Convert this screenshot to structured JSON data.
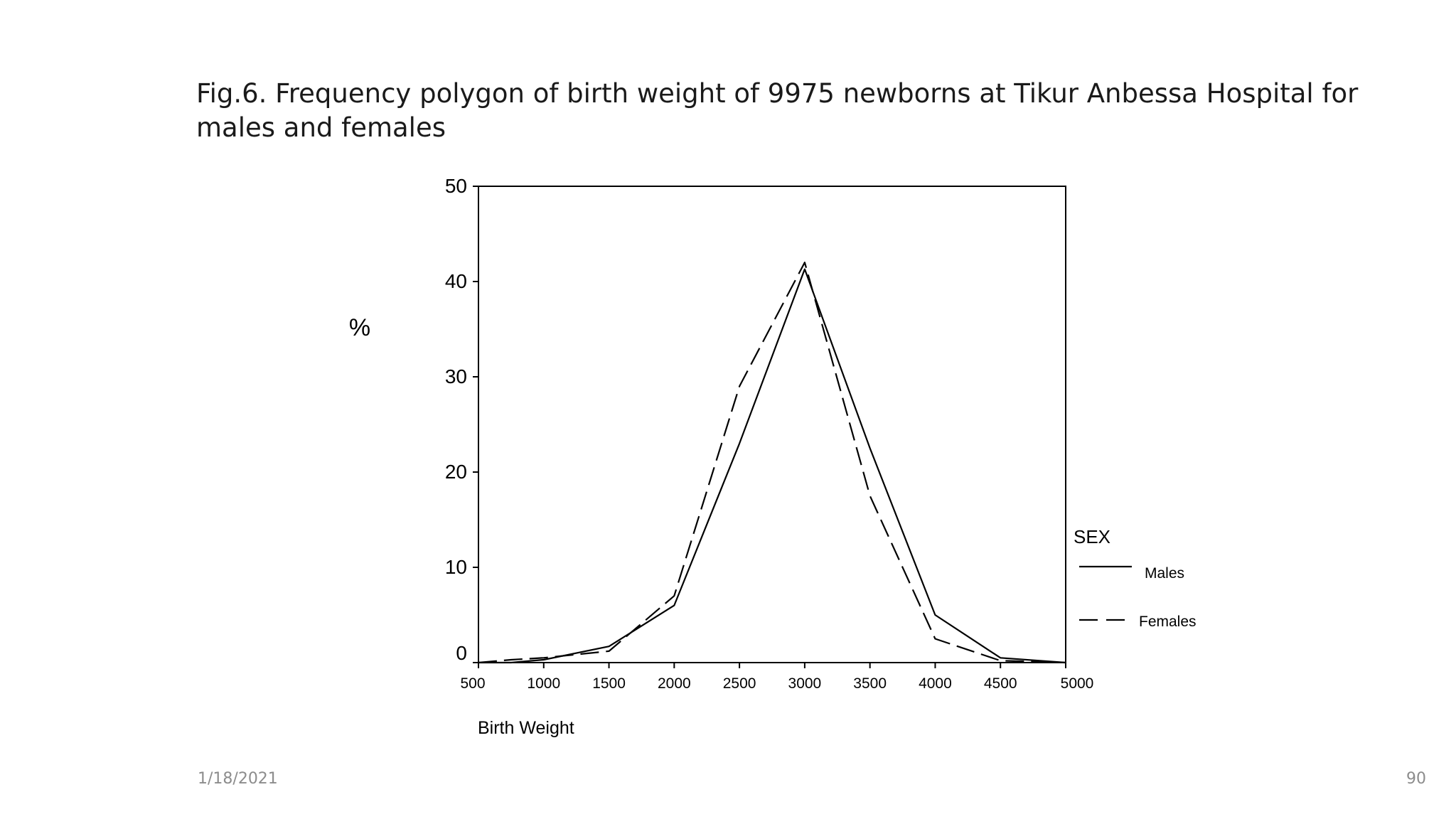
{
  "slide": {
    "title": "Fig.6. Frequency polygon of birth weight of 9975 newborns at Tikur Anbessa Hospital for males and females",
    "date": "1/18/2021",
    "page_number": "90"
  },
  "chart_data": {
    "type": "line",
    "title": "",
    "xlabel": "Birth Weight",
    "ylabel": "%",
    "xlim": [
      500,
      5000
    ],
    "ylim": [
      0,
      50
    ],
    "xticks": [
      500,
      1000,
      1500,
      2000,
      2500,
      3000,
      3500,
      4000,
      4500,
      5000
    ],
    "yticks": [
      0,
      10,
      20,
      30,
      40,
      50
    ],
    "grid": false,
    "legend": {
      "title": "SEX",
      "placement": "right"
    },
    "series": [
      {
        "name": "Males",
        "line_style": "solid",
        "x": [
          500,
          750,
          1000,
          1500,
          2000,
          2500,
          3000,
          3500,
          4000,
          4500,
          5000
        ],
        "y": [
          0,
          0,
          0.3,
          1.7,
          6,
          23,
          41.3,
          22.5,
          5,
          0.5,
          0
        ]
      },
      {
        "name": "Females",
        "line_style": "dashed",
        "x": [
          500,
          750,
          1000,
          1500,
          2000,
          2500,
          3000,
          3500,
          4000,
          4500,
          5000
        ],
        "y": [
          0,
          0.3,
          0.5,
          1.2,
          7,
          29,
          42,
          17.5,
          2.5,
          0.2,
          0
        ]
      }
    ]
  }
}
